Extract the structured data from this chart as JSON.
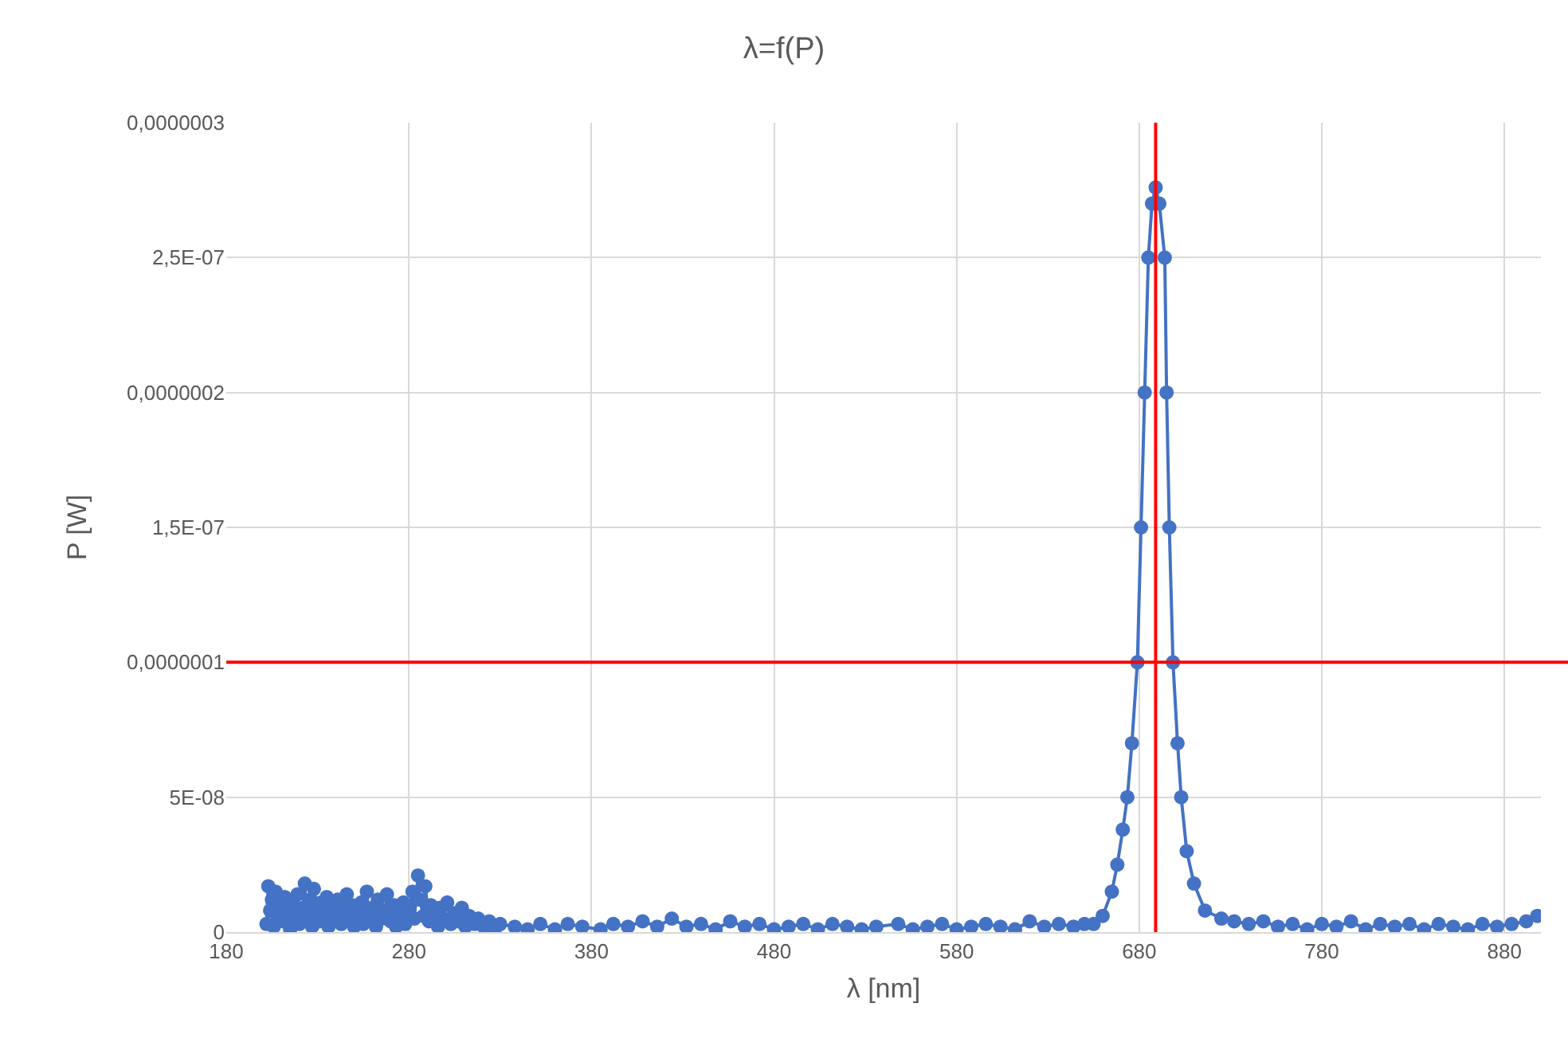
{
  "chart_data": {
    "type": "line",
    "title": "λ=f(P)",
    "xlabel": "λ [nm]",
    "ylabel": "P [W]",
    "xlim": [
      180,
      900
    ],
    "xticks": [
      180,
      280,
      380,
      480,
      580,
      680,
      780,
      880
    ],
    "ylim": [
      0,
      3e-07
    ],
    "yticks": [
      0,
      {
        "value": 5e-08,
        "label": "5E-08"
      },
      {
        "value": 1e-07,
        "label": "0,0000001"
      },
      {
        "value": 1.5e-07,
        "label": "1,5E-07"
      },
      {
        "value": 2e-07,
        "label": "0,0000002"
      },
      {
        "value": 2.5e-07,
        "label": "2,5E-07"
      },
      {
        "value": 3e-07,
        "label": "0,0000003"
      }
    ],
    "grid": true,
    "marker": "circle",
    "line_style": "solid",
    "ref_lines": [
      {
        "axis": "y",
        "value": 1e-07,
        "color": "#ff0000"
      },
      {
        "axis": "x",
        "value": 689,
        "color": "#ff0000"
      }
    ],
    "series": [
      {
        "color": "#4472c4",
        "x": [
          202,
          203,
          204,
          205,
          206,
          207,
          208,
          210,
          211,
          212,
          214,
          215,
          216,
          218,
          219,
          220,
          222,
          223,
          224,
          226,
          227,
          228,
          230,
          231,
          232,
          234,
          235,
          236,
          238,
          240,
          241,
          243,
          244,
          246,
          247,
          249,
          250,
          252,
          254,
          255,
          257,
          258,
          260,
          262,
          263,
          265,
          267,
          268,
          270,
          272,
          273,
          275,
          277,
          278,
          280,
          282,
          283,
          285,
          286,
          288,
          289,
          291,
          292,
          294,
          296,
          297,
          299,
          301,
          303,
          305,
          307,
          309,
          311,
          313,
          316,
          318,
          321,
          324,
          327,
          330,
          338,
          345,
          352,
          360,
          367,
          375,
          385,
          392,
          400,
          408,
          416,
          424,
          432,
          440,
          448,
          456,
          464,
          472,
          480,
          488,
          496,
          504,
          512,
          520,
          528,
          536,
          548,
          556,
          564,
          572,
          580,
          588,
          596,
          604,
          612,
          620,
          628,
          636,
          644,
          650,
          655,
          660,
          665,
          668,
          671,
          673.5,
          676,
          679,
          681,
          683,
          685,
          687,
          689,
          691,
          694,
          695,
          696.5,
          698.5,
          701,
          703,
          706,
          710,
          716,
          725,
          732,
          740,
          748,
          756,
          764,
          772,
          780,
          788,
          796,
          804,
          812,
          820,
          828,
          836,
          844,
          852,
          860,
          868,
          876,
          884,
          892,
          898
        ],
        "values": [
          3e-09,
          1.7e-08,
          8e-09,
          1.2e-08,
          2e-09,
          1.5e-08,
          6e-09,
          1e-08,
          4e-09,
          1.3e-08,
          7e-09,
          1e-09,
          1.1e-08,
          5e-09,
          1.4e-08,
          3e-09,
          9e-09,
          1.8e-08,
          6e-09,
          1.2e-08,
          2e-09,
          1.6e-08,
          8e-09,
          4e-09,
          1.1e-08,
          6e-09,
          1.3e-08,
          2e-09,
          9e-09,
          5e-09,
          1.2e-08,
          3e-09,
          8e-09,
          1.4e-08,
          4e-09,
          1e-08,
          2e-09,
          7e-09,
          1.1e-08,
          3e-09,
          1.5e-08,
          6e-09,
          9e-09,
          2e-09,
          1.2e-08,
          5e-09,
          8e-09,
          1.4e-08,
          4e-09,
          1e-08,
          2e-09,
          7e-09,
          1.1e-08,
          3e-09,
          8e-09,
          1.5e-08,
          5e-09,
          2.1e-08,
          1.2e-08,
          6e-09,
          1.7e-08,
          4e-09,
          1e-08,
          7e-09,
          2e-09,
          9e-09,
          5e-09,
          1.1e-08,
          3e-09,
          7e-09,
          4e-09,
          9e-09,
          2e-09,
          6e-09,
          3e-09,
          5e-09,
          2e-09,
          4e-09,
          1e-09,
          3e-09,
          2e-09,
          1e-09,
          3e-09,
          1e-09,
          3e-09,
          2e-09,
          1e-09,
          3e-09,
          2e-09,
          4e-09,
          2e-09,
          5e-09,
          2e-09,
          3e-09,
          1e-09,
          4e-09,
          2e-09,
          3e-09,
          1e-09,
          2e-09,
          3e-09,
          1e-09,
          3e-09,
          2e-09,
          1e-09,
          2e-09,
          3e-09,
          1e-09,
          2e-09,
          3e-09,
          1e-09,
          2e-09,
          3e-09,
          2e-09,
          1e-09,
          4e-09,
          2e-09,
          3e-09,
          2e-09,
          3e-09,
          3e-09,
          6e-09,
          1.5e-08,
          2.5e-08,
          3.8e-08,
          5e-08,
          7e-08,
          1e-07,
          1.5e-07,
          2e-07,
          2.5e-07,
          2.7e-07,
          2.76e-07,
          2.7e-07,
          2.5e-07,
          2e-07,
          1.5e-07,
          1e-07,
          7e-08,
          5e-08,
          3e-08,
          1.8e-08,
          8e-09,
          5e-09,
          4e-09,
          3e-09,
          4e-09,
          2e-09,
          3e-09,
          1e-09,
          3e-09,
          2e-09,
          4e-09,
          1e-09,
          3e-09,
          2e-09,
          3e-09,
          1e-09,
          3e-09,
          2e-09,
          1e-09,
          3e-09,
          2e-09,
          3e-09,
          4e-09,
          6e-09
        ]
      }
    ]
  }
}
